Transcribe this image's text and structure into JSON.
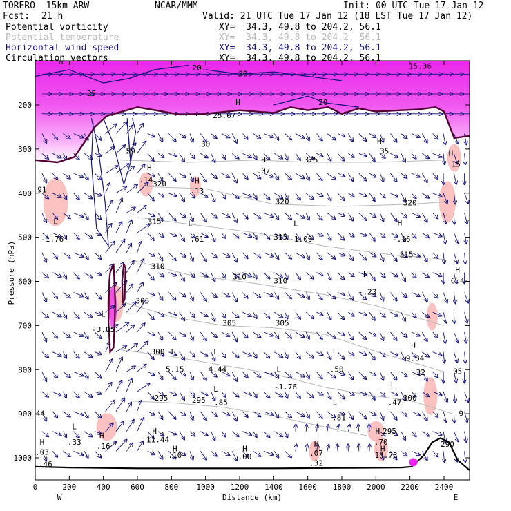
{
  "header": {
    "model": "TORERO  15km ARW",
    "org": "NCAR/MMM",
    "init": "Init: 00 UTC Tue 17 Jan 12",
    "fcst_label": "Fcst:",
    "fcst_value": "21 h",
    "valid": "Valid: 21 UTC Tue 17 Jan 12 (18 LST Tue 17 Jan 12)"
  },
  "legend": [
    {
      "label": "Potential vorticity",
      "xy": "XY=  34.3, 49.8 to 204.2, 56.1",
      "color": "#000000"
    },
    {
      "label": "Potential temperature",
      "xy": "XY=  34.3, 49.8 to 204.2, 56.1",
      "color": "#b8b8b8"
    },
    {
      "label": "Horizontal wind speed",
      "xy": "XY=  34.3, 49.8 to 204.2, 56.1",
      "color": "#14147a"
    },
    {
      "label": "Circulation vectors",
      "xy": "XY=  34.3, 49.8 to 204.2, 56.1",
      "color": "#000000"
    }
  ],
  "chart_data": {
    "type": "cross-section",
    "xlabel": "Distance (km)",
    "ylabel": "Pressure (hPa)",
    "xlim": [
      0,
      2550
    ],
    "ylim_pressure": [
      1050,
      100
    ],
    "x_ticks": [
      "0",
      "200",
      "400",
      "600",
      "800",
      "1000",
      "1200",
      "1400",
      "1600",
      "1800",
      "2000",
      "2200",
      "2400"
    ],
    "y_ticks": [
      "200",
      "300",
      "400",
      "500",
      "600",
      "700",
      "800",
      "900",
      "1000"
    ],
    "endpoints": {
      "left": "W",
      "right": "E"
    },
    "colors": {
      "pv_fill": "#ee22ee",
      "pv_light": "#f9b6b6",
      "wind": "#14147a",
      "theta": "#b8b8b8",
      "tropopause": "#550033"
    },
    "tropopause_km_hpa": [
      [
        0,
        325
      ],
      [
        130,
        330
      ],
      [
        230,
        318
      ],
      [
        350,
        250
      ],
      [
        420,
        225
      ],
      [
        600,
        205
      ],
      [
        750,
        215
      ],
      [
        850,
        222
      ],
      [
        1000,
        220
      ],
      [
        1200,
        212
      ],
      [
        1400,
        218
      ],
      [
        1500,
        205
      ],
      [
        1600,
        212
      ],
      [
        1720,
        205
      ],
      [
        1800,
        220
      ],
      [
        1900,
        208
      ],
      [
        2000,
        215
      ],
      [
        2150,
        212
      ],
      [
        2250,
        210
      ],
      [
        2350,
        205
      ],
      [
        2400,
        215
      ],
      [
        2460,
        275
      ],
      [
        2550,
        270
      ]
    ],
    "terrain_km_hpa": [
      [
        0,
        1020
      ],
      [
        200,
        1022
      ],
      [
        600,
        1024
      ],
      [
        1000,
        1024
      ],
      [
        1400,
        1024
      ],
      [
        1800,
        1023
      ],
      [
        2150,
        1022
      ],
      [
        2210,
        1020
      ],
      [
        2280,
        995
      ],
      [
        2330,
        965
      ],
      [
        2380,
        955
      ],
      [
        2430,
        965
      ],
      [
        2480,
        1005
      ],
      [
        2550,
        1028
      ]
    ],
    "theta_isentropes": [
      {
        "value": "325",
        "km_hpa": [
          [
            500,
            325
          ],
          [
            900,
            330
          ],
          [
            1300,
            325
          ],
          [
            1600,
            330
          ],
          [
            2000,
            330
          ],
          [
            2400,
            325
          ]
        ]
      },
      {
        "value": "320",
        "km_hpa": [
          [
            650,
            385
          ],
          [
            1000,
            390
          ],
          [
            1400,
            425
          ],
          [
            1800,
            430
          ],
          [
            2200,
            425
          ],
          [
            2400,
            420
          ]
        ]
      },
      {
        "value": "315",
        "km_hpa": [
          [
            600,
            455
          ],
          [
            900,
            470
          ],
          [
            1300,
            490
          ],
          [
            1700,
            520
          ],
          [
            2100,
            540
          ],
          [
            2400,
            550
          ]
        ]
      },
      {
        "value": "310",
        "km_hpa": [
          [
            550,
            550
          ],
          [
            900,
            585
          ],
          [
            1300,
            605
          ],
          [
            1700,
            630
          ],
          [
            2000,
            655
          ],
          [
            2400,
            700
          ]
        ]
      },
      {
        "value": "305",
        "km_hpa": [
          [
            500,
            645
          ],
          [
            800,
            680
          ],
          [
            1100,
            700
          ],
          [
            1400,
            705
          ],
          [
            1700,
            720
          ],
          [
            2050,
            765
          ],
          [
            2400,
            805
          ]
        ]
      },
      {
        "value": "300",
        "km_hpa": [
          [
            500,
            755
          ],
          [
            800,
            770
          ],
          [
            1100,
            790
          ],
          [
            1400,
            810
          ],
          [
            1700,
            840
          ],
          [
            2000,
            860
          ],
          [
            2200,
            870
          ],
          [
            2450,
            900
          ]
        ]
      },
      {
        "value": "295",
        "km_hpa": [
          [
            500,
            870
          ],
          [
            800,
            875
          ],
          [
            1100,
            885
          ],
          [
            1400,
            905
          ],
          [
            1700,
            930
          ],
          [
            1950,
            950
          ]
        ]
      }
    ],
    "wind_speed_contours": [
      {
        "value": "20",
        "km_hpa": [
          [
            0,
            135
          ],
          [
            200,
            120
          ],
          [
            400,
            150
          ],
          [
            550,
            140
          ],
          [
            700,
            120
          ],
          [
            900,
            110
          ]
        ]
      },
      {
        "value": "30",
        "km_hpa": [
          [
            1000,
            120
          ],
          [
            1200,
            130
          ],
          [
            1400,
            125
          ],
          [
            1600,
            135
          ],
          [
            1800,
            145
          ]
        ]
      },
      {
        "value": "20",
        "km_hpa": [
          [
            1400,
            200
          ],
          [
            1600,
            180
          ],
          [
            1700,
            195
          ],
          [
            1900,
            205
          ]
        ]
      }
    ],
    "labels": [
      {
        "text": "H",
        "km": 150,
        "hpa": 108
      },
      {
        "text": "20",
        "km": 950,
        "hpa": 122
      },
      {
        "text": "30",
        "km": 1220,
        "hpa": 135
      },
      {
        "text": "H",
        "km": 2240,
        "hpa": 100
      },
      {
        "text": "15.36",
        "km": 2260,
        "hpa": 118
      },
      {
        "text": "H",
        "km": 1190,
        "hpa": 200
      },
      {
        "text": "25.67",
        "km": 1110,
        "hpa": 230
      },
      {
        "text": "20",
        "km": 1690,
        "hpa": 200
      },
      {
        "text": "35",
        "km": 330,
        "hpa": 180
      },
      {
        "text": "H",
        "km": 2020,
        "hpa": 288
      },
      {
        "text": "35",
        "km": 2050,
        "hpa": 310
      },
      {
        "text": "H",
        "km": 2440,
        "hpa": 315
      },
      {
        "text": "15",
        "km": 2470,
        "hpa": 340
      },
      {
        "text": "H",
        "km": 1340,
        "hpa": 330
      },
      {
        "text": ".07",
        "km": 1340,
        "hpa": 355
      },
      {
        "text": "59",
        "km": 560,
        "hpa": 310
      },
      {
        "text": "30",
        "km": 1000,
        "hpa": 295
      },
      {
        "text": "H",
        "km": 670,
        "hpa": 348
      },
      {
        "text": ".14",
        "km": 650,
        "hpa": 375
      },
      {
        "text": "H",
        "km": 950,
        "hpa": 378
      },
      {
        "text": ".13",
        "km": 950,
        "hpa": 400
      },
      {
        "text": "91",
        "km": 40,
        "hpa": 398
      },
      {
        "text": "L",
        "km": 120,
        "hpa": 470
      },
      {
        "text": "-1.76",
        "km": 100,
        "hpa": 510
      },
      {
        "text": "L",
        "km": 910,
        "hpa": 475
      },
      {
        "text": ".61",
        "km": 950,
        "hpa": 510
      },
      {
        "text": "L",
        "km": 1530,
        "hpa": 475
      },
      {
        "text": "-1.09",
        "km": 1560,
        "hpa": 510
      },
      {
        "text": "H",
        "km": 2140,
        "hpa": 473
      },
      {
        "text": "-.16",
        "km": 2150,
        "hpa": 510
      },
      {
        "text": "H",
        "km": 1940,
        "hpa": 590
      },
      {
        "text": "-.23",
        "km": 1950,
        "hpa": 630
      },
      {
        "text": "H",
        "km": 2480,
        "hpa": 580
      },
      {
        "text": "6.4",
        "km": 2480,
        "hpa": 605
      },
      {
        "text": "L",
        "km": 400,
        "hpa": 680
      },
      {
        "text": "-3.05",
        "km": 400,
        "hpa": 715
      },
      {
        "text": "L",
        "km": 810,
        "hpa": 765
      },
      {
        "text": "5.15",
        "km": 820,
        "hpa": 805
      },
      {
        "text": "L",
        "km": 1060,
        "hpa": 765
      },
      {
        "text": "4.44",
        "km": 1070,
        "hpa": 805
      },
      {
        "text": "L",
        "km": 1430,
        "hpa": 805
      },
      {
        "text": "-1.76",
        "km": 1470,
        "hpa": 845
      },
      {
        "text": "L",
        "km": 1760,
        "hpa": 765
      },
      {
        "text": ".50",
        "km": 1770,
        "hpa": 805
      },
      {
        "text": "H",
        "km": 2220,
        "hpa": 750
      },
      {
        "text": "9.84",
        "km": 2230,
        "hpa": 780
      },
      {
        "text": ".32",
        "km": 2250,
        "hpa": 812
      },
      {
        "text": "L",
        "km": 2100,
        "hpa": 840
      },
      {
        "text": ".47",
        "km": 2110,
        "hpa": 880
      },
      {
        "text": "L",
        "km": 1060,
        "hpa": 850
      },
      {
        "text": ".85",
        "km": 1090,
        "hpa": 880
      },
      {
        "text": "L",
        "km": 1760,
        "hpa": 880
      },
      {
        "text": "-.81",
        "km": 1770,
        "hpa": 915
      },
      {
        "text": "44",
        "km": 30,
        "hpa": 905
      },
      {
        "text": "L",
        "km": 230,
        "hpa": 935
      },
      {
        "text": ".33",
        "km": 230,
        "hpa": 970
      },
      {
        "text": "H",
        "km": 390,
        "hpa": 955
      },
      {
        "text": ".16",
        "km": 400,
        "hpa": 980
      },
      {
        "text": "H",
        "km": 700,
        "hpa": 945
      },
      {
        "text": "11.44",
        "km": 720,
        "hpa": 965
      },
      {
        "text": "H",
        "km": 820,
        "hpa": 985
      },
      {
        "text": ".10",
        "km": 820,
        "hpa": 1000
      },
      {
        "text": "H",
        "km": 1230,
        "hpa": 985
      },
      {
        "text": ".00",
        "km": 1230,
        "hpa": 1003
      },
      {
        "text": "H",
        "km": 40,
        "hpa": 970
      },
      {
        "text": ".03",
        "km": 40,
        "hpa": 993
      },
      {
        "text": ".46",
        "km": 60,
        "hpa": 1020
      },
      {
        "text": "H",
        "km": 1650,
        "hpa": 975
      },
      {
        "text": ".07",
        "km": 1650,
        "hpa": 995
      },
      {
        "text": ".32",
        "km": 1650,
        "hpa": 1018
      },
      {
        "text": "H",
        "km": 2010,
        "hpa": 945
      },
      {
        "text": ".70",
        "km": 2030,
        "hpa": 970
      },
      {
        "text": "H",
        "km": 2040,
        "hpa": 985
      },
      {
        "text": "14.73",
        "km": 2060,
        "hpa": 1000
      },
      {
        "text": "9",
        "km": 2500,
        "hpa": 905
      },
      {
        "text": "05",
        "km": 2480,
        "hpa": 810
      }
    ],
    "theta_labels": [
      {
        "text": "325",
        "km": 1620,
        "hpa": 330
      },
      {
        "text": "320",
        "km": 730,
        "hpa": 385
      },
      {
        "text": "320",
        "km": 1450,
        "hpa": 425
      },
      {
        "text": "320",
        "km": 2200,
        "hpa": 428
      },
      {
        "text": "315",
        "km": 700,
        "hpa": 470
      },
      {
        "text": "315",
        "km": 1440,
        "hpa": 505
      },
      {
        "text": "315",
        "km": 2180,
        "hpa": 545
      },
      {
        "text": "310",
        "km": 720,
        "hpa": 572
      },
      {
        "text": "310",
        "km": 1200,
        "hpa": 595
      },
      {
        "text": "310",
        "km": 1440,
        "hpa": 605
      },
      {
        "text": "305",
        "km": 630,
        "hpa": 650
      },
      {
        "text": "305",
        "km": 1140,
        "hpa": 700
      },
      {
        "text": "305",
        "km": 1450,
        "hpa": 700
      },
      {
        "text": "300",
        "km": 720,
        "hpa": 765
      },
      {
        "text": "300",
        "km": 2200,
        "hpa": 870
      },
      {
        "text": "295",
        "km": 740,
        "hpa": 870
      },
      {
        "text": "295",
        "km": 960,
        "hpa": 875
      },
      {
        "text": "295",
        "km": 2080,
        "hpa": 945
      },
      {
        "text": "290",
        "km": 2420,
        "hpa": 975
      }
    ]
  }
}
